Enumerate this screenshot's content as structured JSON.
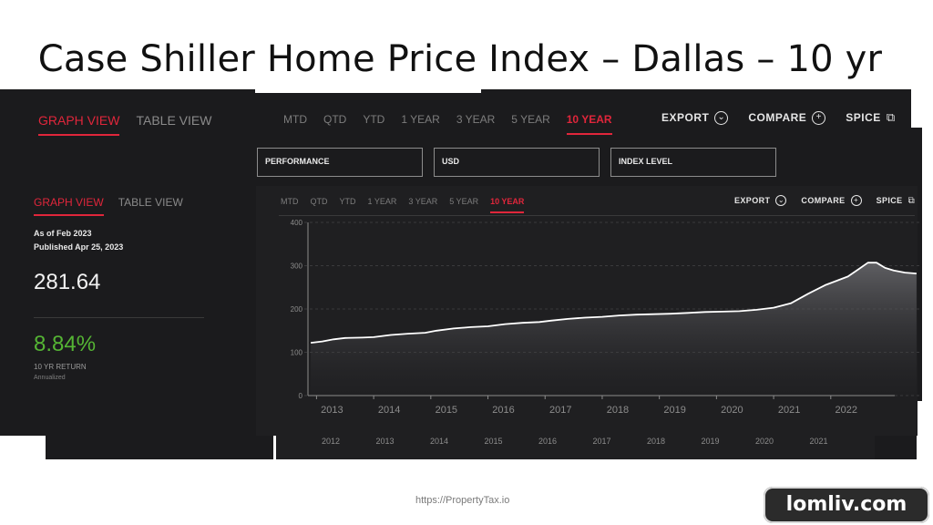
{
  "slide": {
    "title": "Case Shiller Home Price Index – Dallas – 10 yr",
    "footer": "https://PropertyTax.io",
    "watermark": "lomliv.com"
  },
  "view_tabs": [
    "GRAPH VIEW",
    "TABLE VIEW"
  ],
  "periods": [
    "MTD",
    "QTD",
    "YTD",
    "1 YEAR",
    "3 YEAR",
    "5 YEAR",
    "10 YEAR"
  ],
  "active_period": "10 YEAR",
  "actions": {
    "export": "EXPORT",
    "compare": "COMPARE",
    "spice": "SPICE"
  },
  "filters": {
    "performance": "PERFORMANCE",
    "currency": "USD",
    "index_level": "INDEX LEVEL"
  },
  "summary": {
    "as_of": "As of Feb 2023",
    "published": "Published Apr 25, 2023",
    "value": "281.64",
    "return_pct": "8.84%",
    "return_label": "10 YR RETURN",
    "return_sub": "Annualized"
  },
  "colors": {
    "accent_red": "#e0263b",
    "return_green": "#55b534",
    "panel_dark": "#1b1b1d",
    "line": "#ffffff"
  },
  "chart_data": {
    "type": "area",
    "ylim": [
      0,
      400
    ],
    "yticks": [
      0,
      100,
      200,
      300,
      400
    ],
    "xlim": [
      2012.85,
      2023.55
    ],
    "xticks": [
      "2013",
      "2014",
      "2015",
      "2016",
      "2017",
      "2018",
      "2019",
      "2020",
      "2021",
      "2022"
    ],
    "back_xticks": [
      "2012",
      "2013",
      "2014",
      "2015",
      "2016",
      "2017",
      "2018",
      "2019",
      "2020",
      "2021"
    ],
    "series": [
      {
        "x": [
          2012.9,
          2013.1,
          2013.3,
          2013.5,
          2013.8,
          2014.0,
          2014.3,
          2014.6,
          2014.9,
          2015.1,
          2015.4,
          2015.7,
          2016.0,
          2016.3,
          2016.6,
          2016.9,
          2017.1,
          2017.4,
          2017.7,
          2018.0,
          2018.3,
          2018.6,
          2018.9,
          2019.2,
          2019.5,
          2019.8,
          2020.1,
          2020.4,
          2020.7,
          2021.0,
          2021.3,
          2021.6,
          2021.9,
          2022.1,
          2022.3,
          2022.5,
          2022.65,
          2022.8,
          2022.95,
          2023.1,
          2023.3,
          2023.5
        ],
        "y": [
          122,
          125,
          130,
          133,
          134,
          135,
          140,
          143,
          145,
          150,
          155,
          158,
          160,
          165,
          168,
          170,
          173,
          177,
          180,
          182,
          185,
          187,
          188,
          189,
          191,
          193,
          194,
          195,
          198,
          203,
          213,
          235,
          255,
          265,
          275,
          293,
          307,
          307,
          295,
          289,
          284,
          282
        ]
      }
    ]
  }
}
